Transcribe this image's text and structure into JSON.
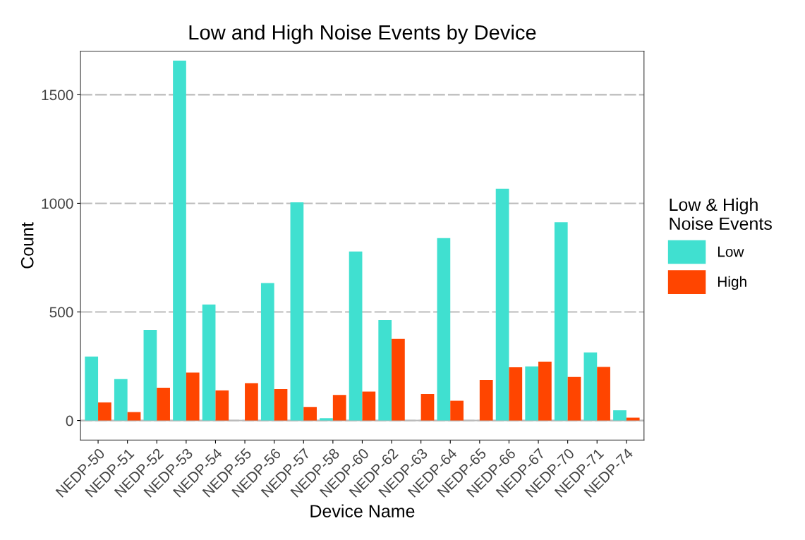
{
  "chart_data": {
    "type": "bar",
    "title": "Low and High Noise Events by Device",
    "xlabel": "Device Name",
    "ylabel": "Count",
    "legend_title": "Low & High\nNoise Events",
    "categories": [
      "NEDP-50",
      "NEDP-51",
      "NEDP-52",
      "NEDP-53",
      "NEDP-54",
      "NEDP-55",
      "NEDP-56",
      "NEDP-57",
      "NEDP-58",
      "NEDP-60",
      "NEDP-62",
      "NEDP-63",
      "NEDP-64",
      "NEDP-65",
      "NEDP-66",
      "NEDP-67",
      "NEDP-70",
      "NEDP-71",
      "NEDP-74"
    ],
    "series": [
      {
        "name": "Low",
        "color": "#40e0d0",
        "values": [
          295,
          191,
          417,
          1657,
          534,
          0,
          633,
          1005,
          11,
          778,
          463,
          0,
          840,
          0,
          1067,
          249,
          913,
          313,
          47
        ]
      },
      {
        "name": "High",
        "color": "#ff4500",
        "values": [
          84,
          39,
          151,
          221,
          139,
          172,
          145,
          63,
          118,
          133,
          376,
          122,
          91,
          187,
          245,
          271,
          201,
          247,
          13
        ]
      }
    ],
    "ylim": [
      -90,
      1700
    ],
    "yticks": [
      0,
      500,
      1000,
      1500
    ],
    "grid": "y",
    "legend": "right"
  }
}
